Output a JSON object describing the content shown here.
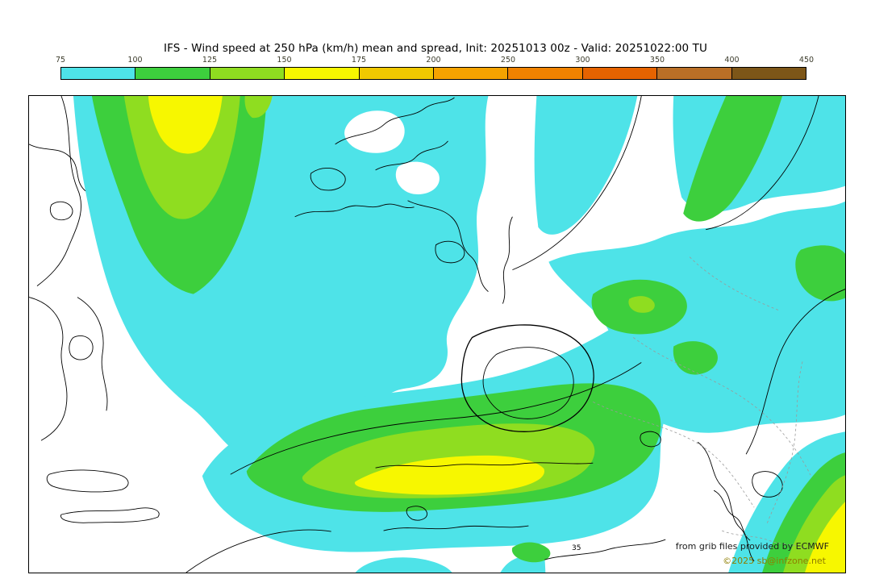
{
  "title": "IFS - Wind speed at 250 hPa (km/h) mean and spread, Init: 20251013 00z - Valid: 20251022:00 TU",
  "colorbar": {
    "ticks": [
      "75",
      "100",
      "125",
      "150",
      "175",
      "200",
      "250",
      "300",
      "350",
      "400",
      "450"
    ],
    "segment_colors": [
      "#4ee3e8",
      "#3dcf3d",
      "#8fdd20",
      "#f7f700",
      "#f0c800",
      "#f5a300",
      "#f08200",
      "#e66300",
      "#ba6f26",
      "#7d5618"
    ]
  },
  "map": {
    "contour_label": "35",
    "attribution_line1": "from grib files provided by ECMWF",
    "attribution_line2": "©2025 sb@infzone.net"
  },
  "colors": {
    "cyan": "#4ee3e8",
    "green": "#3dcf3d",
    "yellow_green": "#8fdd20",
    "yellow": "#f7f700"
  }
}
